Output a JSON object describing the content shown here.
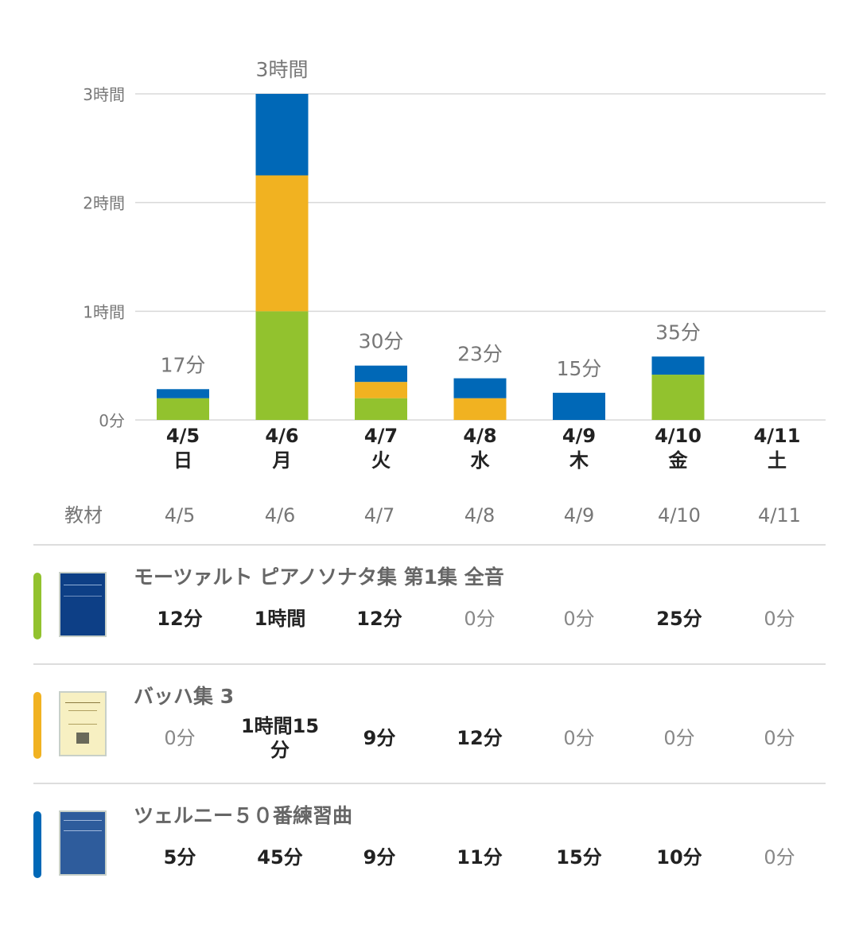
{
  "chart_data": {
    "type": "bar",
    "stacked": true,
    "categories": [
      "4/5",
      "4/6",
      "4/7",
      "4/8",
      "4/9",
      "4/10",
      "4/11"
    ],
    "weekdays": [
      "日",
      "月",
      "火",
      "水",
      "木",
      "金",
      "土"
    ],
    "series": [
      {
        "values": [
          12,
          60,
          12,
          0,
          0,
          25,
          0
        ],
        "color": "#92c22e"
      },
      {
        "values": [
          0,
          75,
          9,
          12,
          0,
          0,
          0
        ],
        "color": "#f1b221"
      },
      {
        "values": [
          5,
          45,
          9,
          11,
          15,
          10,
          0
        ],
        "color": "#0068b7"
      }
    ],
    "totals_labels": [
      "17分",
      "3時間",
      "30分",
      "23分",
      "15分",
      "35分",
      ""
    ],
    "y_ticks": [
      {
        "value": 0,
        "label": "0分"
      },
      {
        "value": 60,
        "label": "1時間"
      },
      {
        "value": 120,
        "label": "2時間"
      },
      {
        "value": 180,
        "label": "3時間"
      }
    ],
    "ylim": [
      0,
      180
    ],
    "grid": true
  },
  "table": {
    "header_label": "教材",
    "dates": [
      "4/5",
      "4/6",
      "4/7",
      "4/8",
      "4/9",
      "4/10",
      "4/11"
    ],
    "rows": [
      {
        "title": "モーツァルト ピアノソナタ集 第1集 全音",
        "color": "#92c22e",
        "cover_color": "#0d3f86",
        "cover_icon": "mozart-book-cover-icon",
        "cells": [
          "12分",
          "1時間",
          "12分",
          "0分",
          "0分",
          "25分",
          "0分"
        ]
      },
      {
        "title": "バッハ集 3",
        "color": "#f1b221",
        "cover_color": "#f7f0c2",
        "cover_icon": "bach-book-cover-icon",
        "cells": [
          "0分",
          "1時間15分",
          "9分",
          "12分",
          "0分",
          "0分",
          "0分"
        ]
      },
      {
        "title": "ツェルニー５０番練習曲",
        "color": "#0068b7",
        "cover_color": "#2e5c9c",
        "cover_icon": "czerny-book-cover-icon",
        "cells": [
          "5分",
          "45分",
          "9分",
          "11分",
          "15分",
          "10分",
          "0分"
        ]
      }
    ]
  }
}
